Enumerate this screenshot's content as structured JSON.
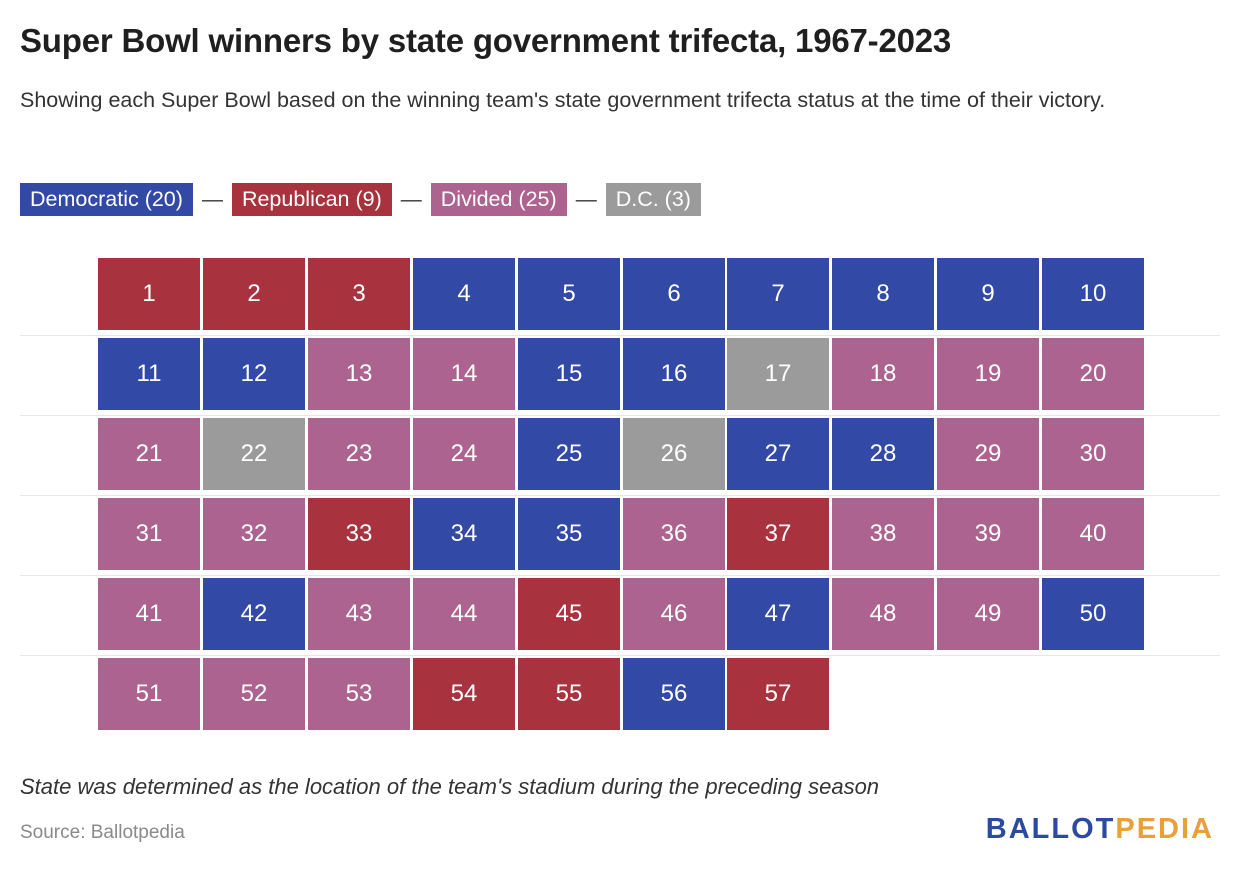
{
  "header": {
    "title": "Super Bowl winners by state government trifecta, 1967-2023",
    "subtitle": "Showing each Super Bowl based on the winning team's state government trifecta status at the time of their victory."
  },
  "legend": {
    "items": [
      {
        "key": "D",
        "label": "Democratic (20)",
        "color": "#3249a6"
      },
      {
        "key": "R",
        "label": "Republican (9)",
        "color": "#a8323e"
      },
      {
        "key": "V",
        "label": "Divided (25)",
        "color": "#ac638f"
      },
      {
        "key": "C",
        "label": "D.C. (3)",
        "color": "#9b9b9b"
      }
    ],
    "separator": "—"
  },
  "chart_data": {
    "type": "table",
    "columns": 10,
    "cells": [
      {
        "n": 1,
        "s": "R"
      },
      {
        "n": 2,
        "s": "R"
      },
      {
        "n": 3,
        "s": "R"
      },
      {
        "n": 4,
        "s": "D"
      },
      {
        "n": 5,
        "s": "D"
      },
      {
        "n": 6,
        "s": "D"
      },
      {
        "n": 7,
        "s": "D"
      },
      {
        "n": 8,
        "s": "D"
      },
      {
        "n": 9,
        "s": "D"
      },
      {
        "n": 10,
        "s": "D"
      },
      {
        "n": 11,
        "s": "D"
      },
      {
        "n": 12,
        "s": "D"
      },
      {
        "n": 13,
        "s": "V"
      },
      {
        "n": 14,
        "s": "V"
      },
      {
        "n": 15,
        "s": "D"
      },
      {
        "n": 16,
        "s": "D"
      },
      {
        "n": 17,
        "s": "C"
      },
      {
        "n": 18,
        "s": "V"
      },
      {
        "n": 19,
        "s": "V"
      },
      {
        "n": 20,
        "s": "V"
      },
      {
        "n": 21,
        "s": "V"
      },
      {
        "n": 22,
        "s": "C"
      },
      {
        "n": 23,
        "s": "V"
      },
      {
        "n": 24,
        "s": "V"
      },
      {
        "n": 25,
        "s": "D"
      },
      {
        "n": 26,
        "s": "C"
      },
      {
        "n": 27,
        "s": "D"
      },
      {
        "n": 28,
        "s": "D"
      },
      {
        "n": 29,
        "s": "V"
      },
      {
        "n": 30,
        "s": "V"
      },
      {
        "n": 31,
        "s": "V"
      },
      {
        "n": 32,
        "s": "V"
      },
      {
        "n": 33,
        "s": "R"
      },
      {
        "n": 34,
        "s": "D"
      },
      {
        "n": 35,
        "s": "D"
      },
      {
        "n": 36,
        "s": "V"
      },
      {
        "n": 37,
        "s": "R"
      },
      {
        "n": 38,
        "s": "V"
      },
      {
        "n": 39,
        "s": "V"
      },
      {
        "n": 40,
        "s": "V"
      },
      {
        "n": 41,
        "s": "V"
      },
      {
        "n": 42,
        "s": "D"
      },
      {
        "n": 43,
        "s": "V"
      },
      {
        "n": 44,
        "s": "V"
      },
      {
        "n": 45,
        "s": "R"
      },
      {
        "n": 46,
        "s": "V"
      },
      {
        "n": 47,
        "s": "D"
      },
      {
        "n": 48,
        "s": "V"
      },
      {
        "n": 49,
        "s": "V"
      },
      {
        "n": 50,
        "s": "D"
      },
      {
        "n": 51,
        "s": "V"
      },
      {
        "n": 52,
        "s": "V"
      },
      {
        "n": 53,
        "s": "V"
      },
      {
        "n": 54,
        "s": "R"
      },
      {
        "n": 55,
        "s": "R"
      },
      {
        "n": 56,
        "s": "D"
      },
      {
        "n": 57,
        "s": "R"
      }
    ]
  },
  "footer": {
    "note": "State was determined as the location of the team's stadium during the preceding season",
    "source": "Source: Ballotpedia",
    "logo_part1": "BALLOT",
    "logo_part2": "PEDIA"
  }
}
